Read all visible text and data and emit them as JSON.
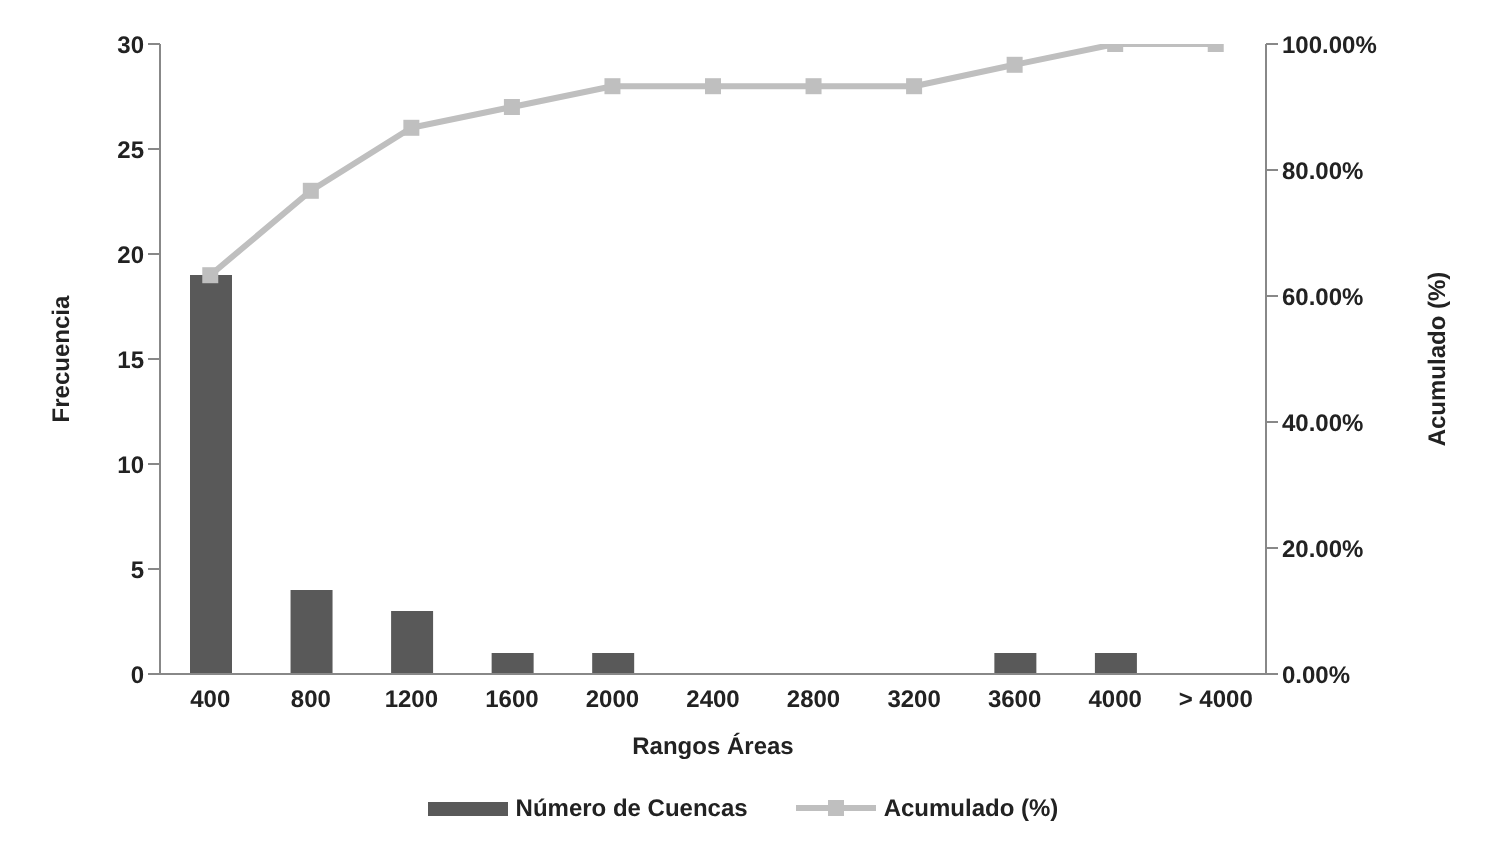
{
  "chart_data": {
    "type": "bar",
    "categories": [
      "400",
      "800",
      "1200",
      "1600",
      "2000",
      "2400",
      "2800",
      "3200",
      "3600",
      "4000",
      "> 4000"
    ],
    "xlabel": "Rangos Áreas",
    "ylabel": "Frecuencia",
    "y2label": "Acumulado (%)",
    "series": [
      {
        "name": "Número de Cuencas",
        "color": "#595959",
        "values": [
          19,
          4,
          3,
          1,
          1,
          0,
          0,
          0,
          1,
          1,
          0
        ]
      },
      {
        "name": "Acumulado (%)",
        "type": "line",
        "axis": "y2",
        "color": "#bfbfbf",
        "marker": "square",
        "values": [
          63.3,
          76.7,
          86.7,
          90,
          93.3,
          93.3,
          93.3,
          93.3,
          96.7,
          100,
          100
        ]
      }
    ],
    "ylim": [
      0,
      30
    ],
    "yticks": [
      0,
      5,
      10,
      15,
      20,
      25,
      30
    ],
    "y2lim": [
      0,
      100
    ],
    "y2ticks": [
      {
        "value": 0,
        "label": "0.00%"
      },
      {
        "value": 20,
        "label": "20.00%"
      },
      {
        "value": 40,
        "label": "40.00%"
      },
      {
        "value": 60,
        "label": "60.00%"
      },
      {
        "value": 80,
        "label": "80.00%"
      },
      {
        "value": 100,
        "label": "100.00%"
      }
    ],
    "grid": false,
    "legend": "bottom"
  }
}
